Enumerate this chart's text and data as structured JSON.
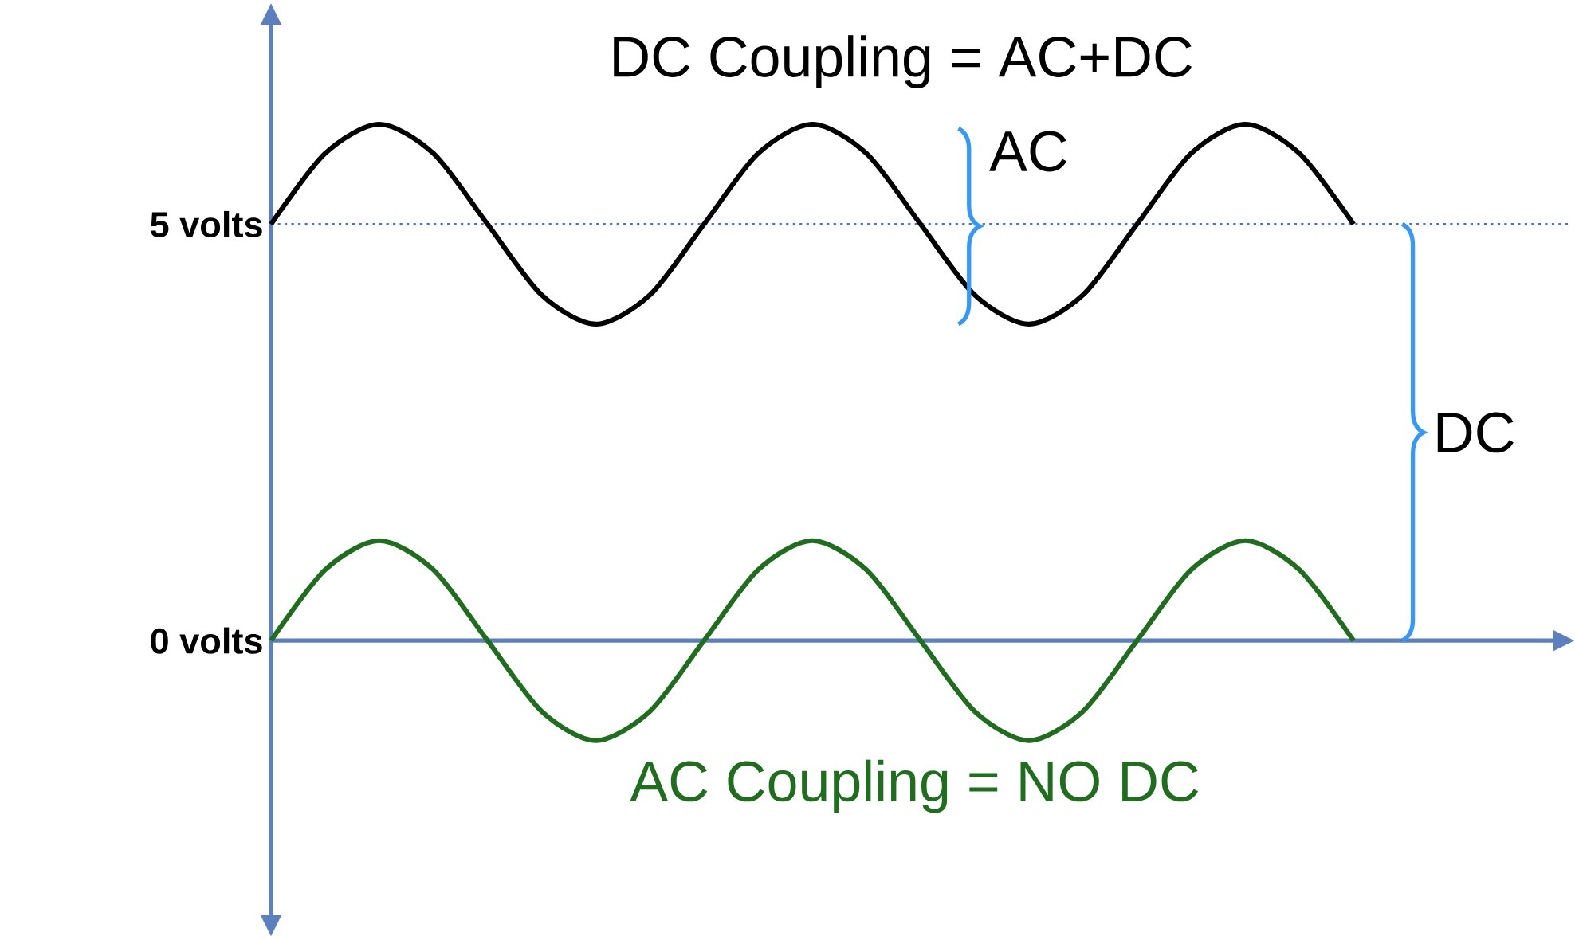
{
  "chart_data": {
    "type": "line",
    "categories": [
      null,
      null,
      null,
      null,
      null,
      null,
      null,
      null,
      null,
      null,
      null,
      null,
      null,
      null,
      null,
      null,
      null,
      null,
      null,
      null,
      null
    ],
    "series": [
      {
        "name": "DC Coupling = AC+DC",
        "color": "#000000",
        "values": [
          5,
          5.85,
          6.2,
          5.85,
          5,
          4.15,
          3.8,
          4.15,
          5,
          5.85,
          6.2,
          5.85,
          5,
          4.15,
          3.8,
          4.15,
          5,
          5.85,
          6.2,
          5.85,
          5
        ]
      },
      {
        "name": "AC Coupling = NO DC",
        "color": "#1e6e1e",
        "values": [
          0,
          0.85,
          1.2,
          0.85,
          0,
          -0.85,
          -1.2,
          -0.85,
          0,
          0.85,
          1.2,
          0.85,
          0,
          -0.85,
          -1.2,
          -0.85,
          0,
          0.85,
          1.2,
          0.85,
          0
        ]
      }
    ],
    "ylim": [
      -3.5,
      7.6
    ],
    "yticks": [
      {
        "value": 5,
        "label": "5 volts"
      },
      {
        "value": 0,
        "label": "0 volts"
      }
    ],
    "ref_lines": [
      {
        "axis": "y",
        "value": 5,
        "color": "#4a72c0",
        "line_style": "dotted"
      },
      {
        "axis": "y",
        "value": 0,
        "color": "#5b7fbf",
        "line_style": "solid"
      }
    ],
    "annotations": [
      "AC",
      "DC"
    ],
    "marker": "none",
    "line_style": "solid"
  }
}
